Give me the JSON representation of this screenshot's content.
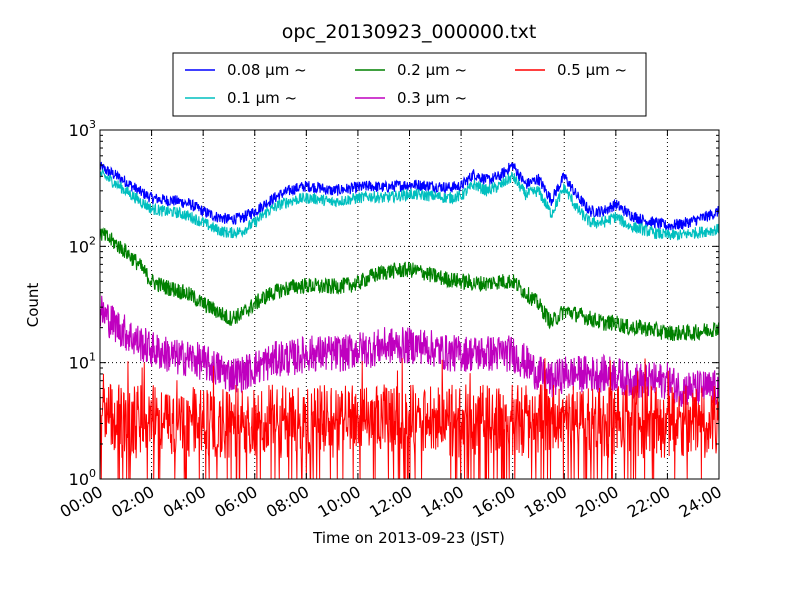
{
  "chart_data": {
    "type": "line",
    "title": "opc_20130923_000000.txt",
    "xlabel": "Time on 2013-09-23 (JST)",
    "ylabel": "Count",
    "xlim": [
      "00:00",
      "24:00"
    ],
    "ylim": [
      1,
      1000
    ],
    "yscale": "log",
    "grid": true,
    "legend_position": "top-center",
    "x_tick_labels": [
      "00:00",
      "02:00",
      "04:00",
      "06:00",
      "08:00",
      "10:00",
      "12:00",
      "14:00",
      "16:00",
      "18:00",
      "20:00",
      "22:00",
      "24:00"
    ],
    "y_ticks": [
      {
        "base": "10",
        "exp": "0"
      },
      {
        "base": "10",
        "exp": "1"
      },
      {
        "base": "10",
        "exp": "2"
      },
      {
        "base": "10",
        "exp": "3"
      }
    ],
    "x": [
      "00:00",
      "00:30",
      "01:00",
      "01:30",
      "02:00",
      "02:30",
      "03:00",
      "03:30",
      "04:00",
      "04:30",
      "05:00",
      "05:30",
      "06:00",
      "06:30",
      "07:00",
      "07:30",
      "08:00",
      "08:30",
      "09:00",
      "09:30",
      "10:00",
      "10:30",
      "11:00",
      "11:30",
      "12:00",
      "12:30",
      "13:00",
      "13:30",
      "14:00",
      "14:30",
      "15:00",
      "15:30",
      "16:00",
      "16:30",
      "17:00",
      "17:30",
      "18:00",
      "18:30",
      "19:00",
      "19:30",
      "20:00",
      "20:30",
      "21:00",
      "21:30",
      "22:00",
      "22:30",
      "23:00",
      "23:30",
      "24:00"
    ],
    "series": [
      {
        "name": "0.08 μm ~",
        "color": "#0000ff",
        "values": [
          480,
          420,
          360,
          300,
          260,
          250,
          245,
          230,
          200,
          180,
          170,
          175,
          200,
          240,
          280,
          310,
          330,
          320,
          300,
          310,
          320,
          330,
          320,
          330,
          340,
          335,
          330,
          320,
          330,
          420,
          370,
          400,
          500,
          340,
          380,
          250,
          400,
          270,
          200,
          200,
          230,
          190,
          170,
          160,
          150,
          155,
          165,
          180,
          200
        ]
      },
      {
        "name": "0.1 μm ~",
        "color": "#00bfbf",
        "values": [
          420,
          360,
          300,
          250,
          210,
          200,
          195,
          180,
          160,
          140,
          130,
          135,
          160,
          200,
          230,
          250,
          260,
          255,
          240,
          250,
          260,
          270,
          260,
          270,
          280,
          275,
          270,
          260,
          270,
          340,
          300,
          330,
          400,
          280,
          300,
          190,
          320,
          210,
          160,
          160,
          180,
          150,
          140,
          130,
          125,
          125,
          130,
          135,
          140
        ]
      },
      {
        "name": "0.2 μm ~",
        "color": "#008000",
        "values": [
          130,
          110,
          90,
          70,
          50,
          45,
          42,
          38,
          32,
          28,
          24,
          26,
          32,
          38,
          42,
          45,
          46,
          45,
          45,
          46,
          48,
          55,
          60,
          62,
          63,
          60,
          55,
          52,
          50,
          48,
          48,
          50,
          50,
          40,
          32,
          22,
          28,
          26,
          24,
          22,
          22,
          20,
          20,
          19,
          18,
          18,
          18,
          19,
          20
        ]
      },
      {
        "name": "0.3 μm ~",
        "color": "#bf00bf",
        "values": [
          28,
          22,
          18,
          15,
          13,
          12,
          11,
          11,
          10,
          9,
          8,
          8,
          9,
          10,
          11,
          11,
          12,
          12,
          12,
          12,
          13,
          13,
          14,
          14,
          14,
          14,
          13,
          12,
          12,
          12,
          12,
          12,
          12,
          10,
          8,
          7,
          8,
          8,
          8,
          8,
          8,
          7,
          7,
          7,
          7,
          6,
          6,
          6,
          6
        ]
      },
      {
        "name": "0.5 μm ~",
        "color": "#ff0000",
        "values": [
          3,
          3,
          3,
          3,
          3,
          3,
          3,
          3,
          3,
          3,
          3,
          3,
          3,
          3,
          3,
          3,
          3,
          3,
          3,
          3,
          3,
          3,
          3,
          3,
          3,
          3,
          3,
          3,
          3,
          3,
          3,
          3,
          3,
          3,
          3,
          3,
          3,
          3,
          3,
          3,
          3,
          3,
          3,
          3,
          3,
          3,
          3,
          3,
          3
        ]
      }
    ]
  }
}
